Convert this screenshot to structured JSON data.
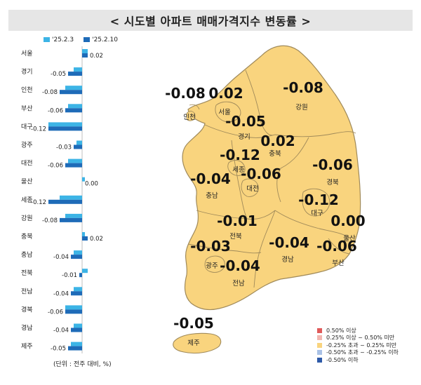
{
  "title": "< 시도별 아파트 매매가격지수 변동률 >",
  "legend": [
    {
      "name": "'25.2.3",
      "color": "#3cb4e6"
    },
    {
      "name": "'25.2.10",
      "color": "#1e6bb8"
    }
  ],
  "unit_note": "(단위 : 전주 대비, %)",
  "chart_data": {
    "type": "bar",
    "orientation": "horizontal",
    "categories": [
      "서울",
      "경기",
      "인천",
      "부산",
      "대구",
      "광주",
      "대전",
      "울산",
      "세종",
      "강원",
      "충북",
      "충남",
      "전북",
      "전남",
      "경북",
      "경남",
      "제주"
    ],
    "series": [
      {
        "name": "'25.2.3",
        "values": [
          0.02,
          -0.03,
          -0.06,
          -0.05,
          -0.12,
          -0.02,
          -0.05,
          0.01,
          -0.08,
          -0.06,
          0.01,
          -0.03,
          0.02,
          -0.03,
          -0.06,
          -0.03,
          -0.04
        ]
      },
      {
        "name": "'25.2.10",
        "values": [
          0.02,
          -0.05,
          -0.08,
          -0.06,
          -0.12,
          -0.03,
          -0.06,
          0.0,
          -0.12,
          -0.08,
          0.02,
          -0.04,
          -0.01,
          -0.04,
          -0.06,
          -0.04,
          -0.05
        ]
      }
    ],
    "data_labels": [
      "0.02",
      "-0.05",
      "-0.08",
      "-0.06",
      "-0.12",
      "-0.03",
      "-0.06",
      "0.00",
      "-0.12",
      "-0.08",
      "0.02",
      "-0.04",
      "-0.01",
      "-0.04",
      "-0.06",
      "-0.04",
      "-0.05"
    ]
  },
  "map": {
    "regions": [
      {
        "id": "incheon",
        "name": "인천",
        "value": "-0.08"
      },
      {
        "id": "seoul",
        "name": "서울",
        "value": "0.02"
      },
      {
        "id": "gangwon",
        "name": "강원",
        "value": "-0.08"
      },
      {
        "id": "gyeonggi",
        "name": "경기",
        "value": "-0.05"
      },
      {
        "id": "chungbuk",
        "name": "충북",
        "value": "0.02"
      },
      {
        "id": "sejong",
        "name": "세종",
        "value": "-0.12"
      },
      {
        "id": "daejeon",
        "name": "대전",
        "value": "-0.06"
      },
      {
        "id": "chungnam",
        "name": "충남",
        "value": "-0.04"
      },
      {
        "id": "gyeongbuk",
        "name": "경북",
        "value": "-0.06"
      },
      {
        "id": "daegu",
        "name": "대구",
        "value": "-0.12"
      },
      {
        "id": "jeonbuk",
        "name": "전북",
        "value": "-0.01"
      },
      {
        "id": "ulsan",
        "name": "울산",
        "value": "0.00"
      },
      {
        "id": "gwangju",
        "name": "광주",
        "value": "-0.03"
      },
      {
        "id": "gyeongnam",
        "name": "경남",
        "value": "-0.04"
      },
      {
        "id": "busan",
        "name": "부산",
        "value": "-0.06"
      },
      {
        "id": "jeonnam",
        "name": "전남",
        "value": "-0.04"
      },
      {
        "id": "jeju",
        "name": "제주",
        "value": "-0.05"
      }
    ],
    "fill_color": "#f9d47e",
    "border_color": "#a08a5a",
    "legend": [
      {
        "label": "0.50% 이상",
        "color": "#e05a5a"
      },
      {
        "label": "0.25% 이상 ~ 0.50% 미만",
        "color": "#f2b6b0"
      },
      {
        "label": "-0.25% 초과 ~ 0.25% 미만",
        "color": "#f9d47e"
      },
      {
        "label": "-0.50% 초과 ~ -0.25% 이하",
        "color": "#a9c1e6"
      },
      {
        "label": "-0.50% 이하",
        "color": "#2e5aa8"
      }
    ]
  }
}
